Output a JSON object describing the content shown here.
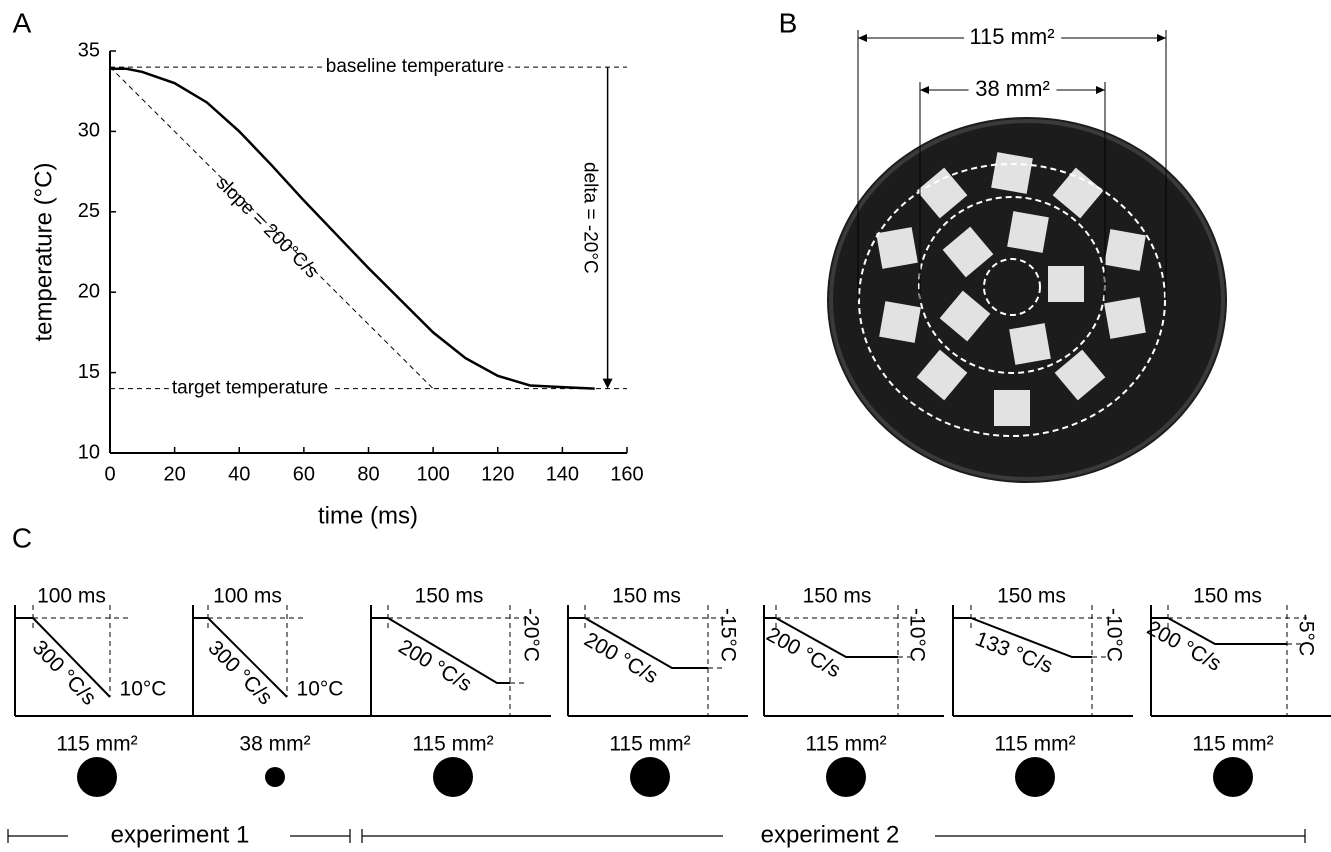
{
  "chart_data": {
    "type": "line",
    "panel_label": "A",
    "x_label": "time (ms)",
    "y_label": "temperature (°C)",
    "x": [
      0,
      5,
      10,
      20,
      30,
      40,
      50,
      60,
      70,
      80,
      90,
      100,
      110,
      120,
      130,
      140,
      150
    ],
    "series": [
      {
        "color": "#000000",
        "values": [
          33.9,
          33.9,
          33.7,
          33.0,
          31.8,
          30.0,
          27.9,
          25.7,
          23.6,
          21.5,
          19.5,
          17.5,
          15.9,
          14.8,
          14.2,
          14.1,
          14.0
        ]
      }
    ],
    "xlim": [
      0,
      160
    ],
    "xticks": [
      0,
      20,
      40,
      60,
      80,
      100,
      120,
      140,
      160
    ],
    "ylim": [
      10,
      35
    ],
    "yticks": [
      10,
      15,
      20,
      25,
      30,
      35
    ],
    "reference_lines": [
      {
        "label": "baseline temperature",
        "value": 34
      },
      {
        "label": "target temperature",
        "value": 14
      }
    ],
    "slope": {
      "label": "slope = 200°C/s",
      "x": [
        0,
        100
      ],
      "y": [
        34,
        14
      ]
    },
    "delta": {
      "label": "delta = -20°C",
      "x": 154
    }
  },
  "panel_b": {
    "label": "B",
    "outer": "115 mm²",
    "inner": "38 mm²"
  },
  "panel_c": {
    "label": "C",
    "diagrams": [
      {
        "duration": "100 ms",
        "rate": "300 °C/s",
        "temperature": "10°C",
        "area": "115 mm²"
      },
      {
        "duration": "100 ms",
        "rate": "300 °C/s",
        "temperature": "10°C",
        "area": "38 mm²"
      },
      {
        "duration": "150 ms",
        "rate": "200 °C/s",
        "temperature": "-20°C",
        "area": "115 mm²"
      },
      {
        "duration": "150 ms",
        "rate": "200 °C/s",
        "temperature": "-15°C",
        "area": "115 mm²"
      },
      {
        "duration": "150 ms",
        "rate": "200 °C/s",
        "temperature": "-10°C",
        "area": "115 mm²"
      },
      {
        "duration": "150 ms",
        "rate": "133 °C/s",
        "temperature": "-10°C",
        "area": "115 mm²"
      },
      {
        "duration": "150 ms",
        "rate": "200 °C/s",
        "temperature": "-5°C",
        "area": "115 mm²"
      }
    ],
    "experiments": [
      "experiment 1",
      "experiment 2"
    ]
  }
}
